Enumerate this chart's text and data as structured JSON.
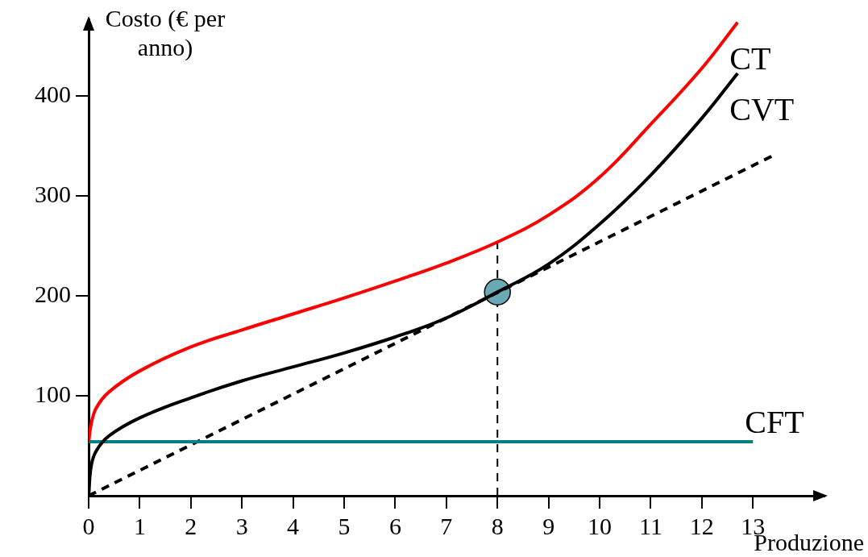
{
  "chart_data": {
    "type": "line",
    "ylabel": "Costo (€ per anno)",
    "xlabel": "Produzione",
    "xlim": [
      0,
      14.4
    ],
    "xticks": [
      0,
      1,
      2,
      3,
      4,
      5,
      6,
      7,
      8,
      9,
      10,
      11,
      12,
      13
    ],
    "ylim": [
      0,
      477
    ],
    "yticks": [
      100,
      200,
      300,
      400
    ],
    "grid": false,
    "legend": false,
    "marker": "none",
    "series": [
      {
        "name": "CT",
        "color": "#ff0000",
        "x": [
          0,
          0.05,
          0.15,
          0.4,
          1,
          2,
          3,
          4,
          5,
          6,
          7,
          8,
          9,
          10,
          11,
          12,
          12.7
        ],
        "values": [
          54,
          72,
          88,
          104,
          125,
          149,
          166,
          182,
          198,
          215,
          233,
          254,
          281,
          319,
          372,
          428,
          474
        ]
      },
      {
        "name": "CVT",
        "color": "#000000",
        "x": [
          0,
          0.05,
          0.15,
          0.4,
          1,
          2,
          3,
          4,
          5,
          6,
          7,
          8,
          9,
          10,
          11,
          12,
          12.7
        ],
        "values": [
          0,
          30,
          45,
          60,
          78,
          98,
          115,
          129,
          143,
          159,
          178,
          204,
          232,
          272,
          321,
          378,
          423
        ]
      },
      {
        "name": "CFT",
        "color": "#008080",
        "x": [
          0,
          13
        ],
        "values": [
          54,
          54
        ]
      },
      {
        "color": "#000000",
        "line_style": "dashed",
        "x": [
          0,
          13.37
        ],
        "values": [
          0,
          340
        ]
      },
      {
        "type": "scatter",
        "color": "#6aaab5",
        "marker": "circle",
        "x": [
          8
        ],
        "values": [
          204
        ]
      }
    ],
    "ref_lines": [
      {
        "axis": "x",
        "value": 8,
        "line_style": "dashed",
        "color": "#000000"
      }
    ]
  }
}
